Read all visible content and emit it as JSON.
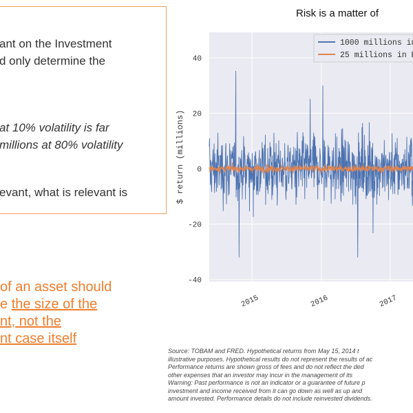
{
  "left_panel": {
    "para1_line1": "ant on the Investment",
    "para1_line2": "d only determine the",
    "para2_line1": "at 10% volatility is far",
    "para2_line2": "millions at 80% volatility",
    "para3_line1": "evant, what is relevant is"
  },
  "orange_text": {
    "line1": "of an asset should",
    "line2_prefix": "e ",
    "line2_link": "the size of the",
    "line3": "nt, not the",
    "line4": "nt case itself"
  },
  "chart_data": {
    "type": "line",
    "title": "Risk is a matter of",
    "ylabel": "$ return (millions)",
    "x_ticks": [
      "2015",
      "2016",
      "2017"
    ],
    "y_ticks": [
      "40",
      "20",
      "0",
      "-20",
      "-40"
    ],
    "ylim": [
      -42,
      48
    ],
    "grid": true,
    "legend_placement": "top-right",
    "series": [
      {
        "name": "1000 millions in",
        "color": "#4c72b0",
        "volatility_pct": 80,
        "approx_range": [
          -40,
          40
        ]
      },
      {
        "name": "25 millions in B",
        "color": "#dd8452",
        "volatility_pct": 10,
        "approx_range": [
          -3,
          3
        ]
      }
    ]
  },
  "footnote": {
    "line1": "Source: TOBAM and FRED. Hypothetical returns from May 15, 2014 t",
    "line2": "illustrative purposes. Hypothetical results do not represent the results of ac",
    "line3": "Performance returns are shown gross of fees and do not reflect the ded",
    "line4": "other expenses that an investor may incur in the management of its",
    "line5": "Warning: Past performance is not an indicator or a guarantee of future p",
    "line6": "investment and income received from it can go down as well as up and",
    "line7": "amount invested. Performance details do not include reinvested dividends."
  }
}
